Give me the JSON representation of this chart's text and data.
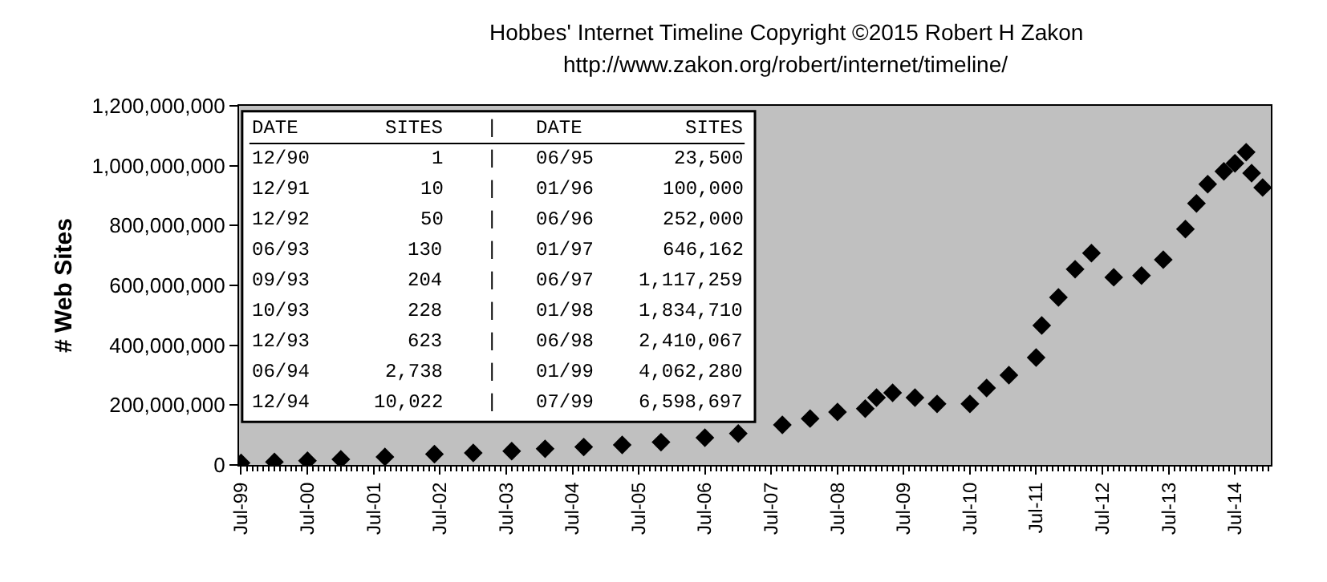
{
  "chart_data": {
    "type": "scatter",
    "title": "Hobbes' Internet Timeline Copyright ©2015 Robert H Zakon",
    "subtitle": "http://www.zakon.org/robert/internet/timeline/",
    "ylabel": "# Web Sites",
    "x": [
      "1999-07",
      "2000-01",
      "2000-07",
      "2001-01",
      "2001-09",
      "2002-06",
      "2003-01",
      "2003-08",
      "2004-02",
      "2004-09",
      "2005-04",
      "2005-11",
      "2006-07",
      "2007-01",
      "2007-09",
      "2008-02",
      "2008-07",
      "2008-12",
      "2009-02",
      "2009-05",
      "2009-09",
      "2010-01",
      "2010-07",
      "2010-10",
      "2011-02",
      "2011-07",
      "2011-08",
      "2011-11",
      "2012-02",
      "2012-05",
      "2012-09",
      "2013-02",
      "2013-06",
      "2013-10",
      "2013-12",
      "2014-02",
      "2014-05",
      "2014-07",
      "2014-09",
      "2014-10",
      "2014-12"
    ],
    "series": [
      {
        "color": "#000000",
        "values": [
          7000000,
          10000000,
          14000000,
          19000000,
          27000000,
          36000000,
          40000000,
          46000000,
          54000000,
          60000000,
          67000000,
          76000000,
          91000000,
          105000000,
          134000000,
          155000000,
          177000000,
          188000000,
          225000000,
          241000000,
          225000000,
          204000000,
          204000000,
          257000000,
          300000000,
          359000000,
          466000000,
          560000000,
          654000000,
          708000000,
          627000000,
          633000000,
          686000000,
          788000000,
          874000000,
          938000000,
          981000000,
          1008000000,
          1045000000,
          975000000,
          927000000
        ]
      }
    ],
    "marker": "diamond",
    "xlim": [
      "1999-06-20",
      "2015-01-15"
    ],
    "xticks": [
      {
        "value": "1999-07",
        "label": "Jul-99"
      },
      {
        "value": "2000-07",
        "label": "Jul-00"
      },
      {
        "value": "2001-07",
        "label": "Jul-01"
      },
      {
        "value": "2002-07",
        "label": "Jul-02"
      },
      {
        "value": "2003-07",
        "label": "Jul-03"
      },
      {
        "value": "2004-07",
        "label": "Jul-04"
      },
      {
        "value": "2005-07",
        "label": "Jul-05"
      },
      {
        "value": "2006-07",
        "label": "Jul-06"
      },
      {
        "value": "2007-07",
        "label": "Jul-07"
      },
      {
        "value": "2008-07",
        "label": "Jul-08"
      },
      {
        "value": "2009-07",
        "label": "Jul-09"
      },
      {
        "value": "2010-07",
        "label": "Jul-10"
      },
      {
        "value": "2011-07",
        "label": "Jul-11"
      },
      {
        "value": "2012-07",
        "label": "Jul-12"
      },
      {
        "value": "2013-07",
        "label": "Jul-13"
      },
      {
        "value": "2014-07",
        "label": "Jul-14"
      }
    ],
    "ylim": [
      0,
      1200000000
    ],
    "yticks": [
      {
        "value": 0,
        "label": "0"
      },
      {
        "value": 200000000,
        "label": "200,000,000"
      },
      {
        "value": 400000000,
        "label": "400,000,000"
      },
      {
        "value": 600000000,
        "label": "600,000,000"
      },
      {
        "value": 800000000,
        "label": "800,000,000"
      },
      {
        "value": 1000000000,
        "label": "1,000,000,000"
      },
      {
        "value": 1200000000,
        "label": "1,200,000,000"
      }
    ],
    "grid": false,
    "annotations": [
      "DATE SITES | DATE SITES",
      "12/90 1 | 06/95 23,500",
      "12/91 10 | 01/96 100,000",
      "12/92 50 | 06/96 252,000",
      "06/93 130 | 01/97 646,162",
      "09/93 204 | 06/97 1,117,259",
      "10/93 228 | 01/98 1,834,710",
      "12/93 623 | 06/98 2,410,067",
      "06/94 2,738 | 01/99 4,062,280",
      "12/94 10,022 | 07/99 6,598,697"
    ]
  }
}
